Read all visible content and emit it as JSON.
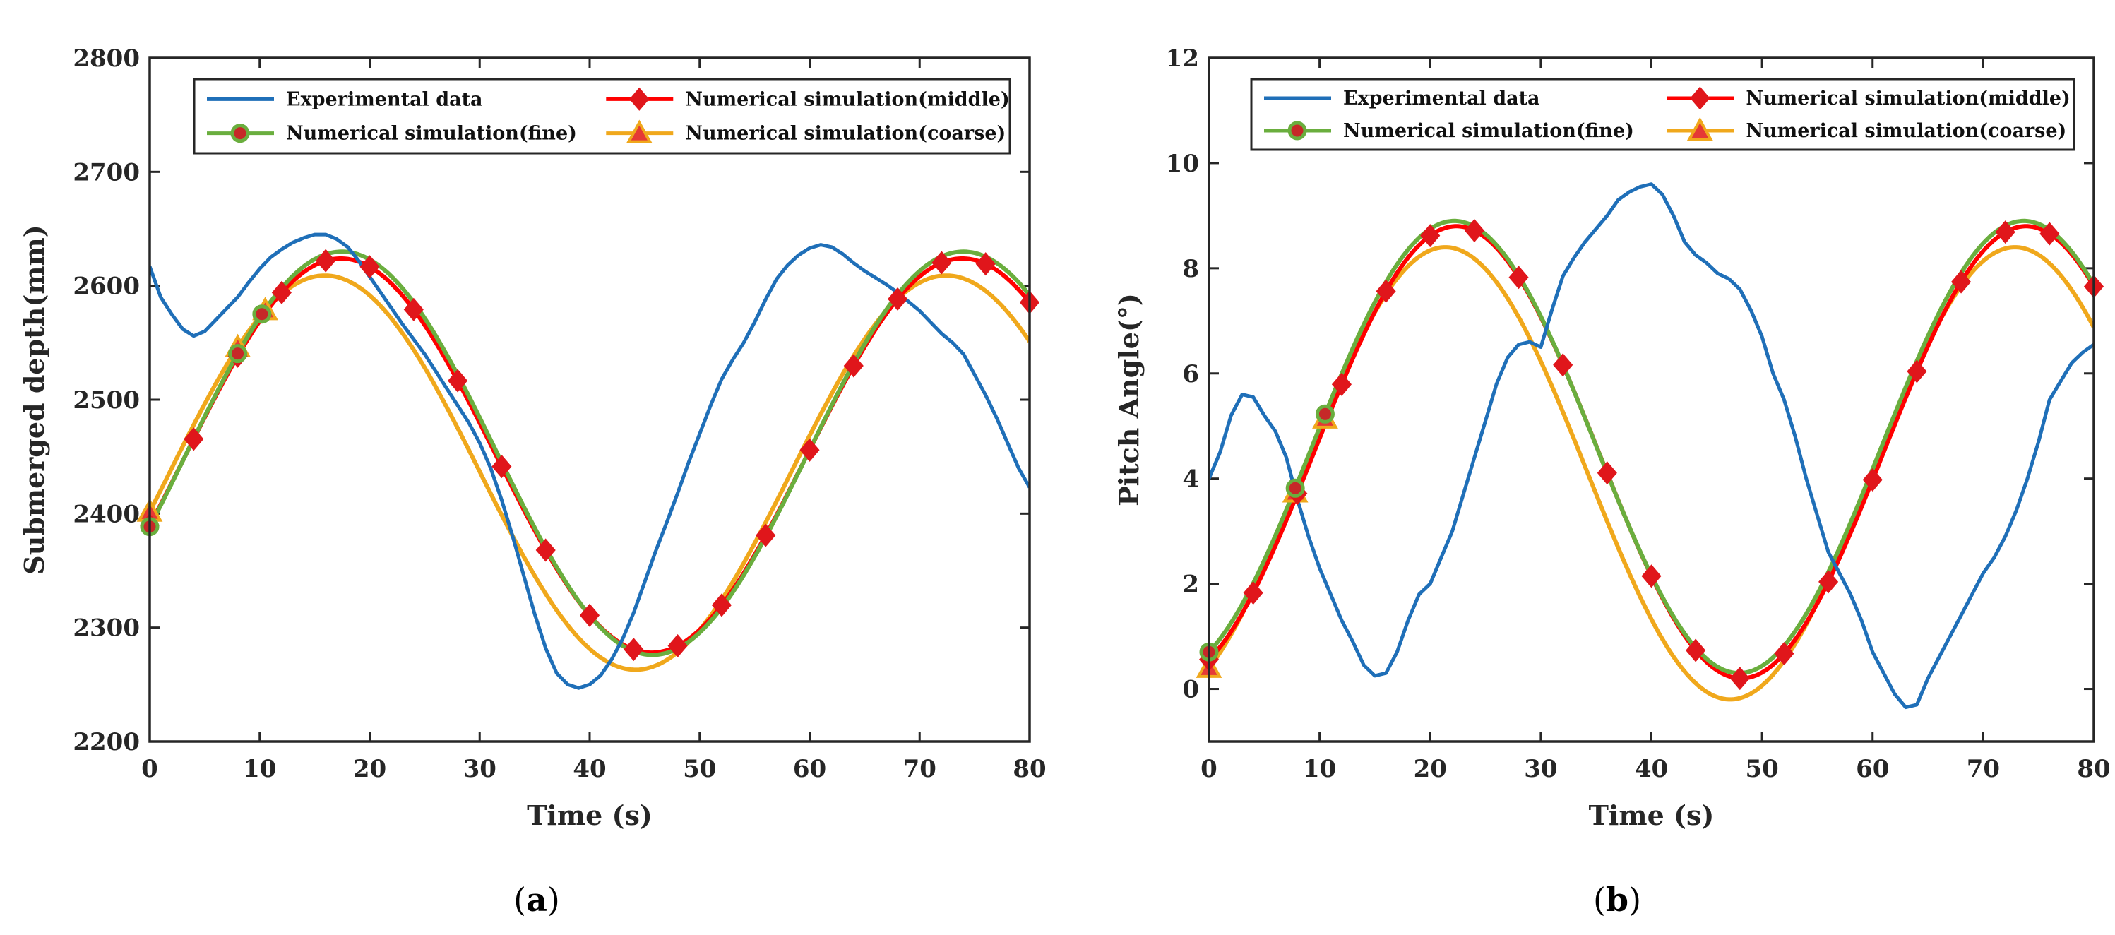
{
  "colors": {
    "experimental": "#1F6FB8",
    "middle": "#FF0000",
    "middle_marker": "#E0161B",
    "fine": "#6AAE3E",
    "fine_marker_face": "#C62828",
    "coarse": "#F0A81C",
    "coarse_marker_face": "#E53935"
  },
  "chart_data": [
    {
      "type": "line",
      "panel_label_prefix": "(",
      "panel_label_letter": "a",
      "panel_label_suffix": ")",
      "xlabel": "Time (s)",
      "ylabel": "Submerged depth(mm)",
      "xlim": [
        0,
        80
      ],
      "ylim": [
        2200,
        2800
      ],
      "xticks": [
        0,
        10,
        20,
        30,
        40,
        50,
        60,
        70,
        80
      ],
      "yticks": [
        2200,
        2300,
        2400,
        2500,
        2600,
        2700,
        2800
      ],
      "grid": false,
      "legend_position": "top",
      "series": [
        {
          "name": "Experimental data",
          "key": "experimental",
          "marker": "none",
          "x": [
            0,
            1,
            2,
            3,
            4,
            5,
            6,
            7,
            8,
            9,
            10,
            11,
            12,
            13,
            14,
            15,
            16,
            17,
            18,
            19,
            20,
            21,
            22,
            23,
            24,
            25,
            26,
            27,
            28,
            29,
            30,
            31,
            32,
            33,
            34,
            35,
            36,
            37,
            38,
            39,
            40,
            41,
            42,
            43,
            44,
            45,
            46,
            47,
            48,
            49,
            50,
            51,
            52,
            53,
            54,
            55,
            56,
            57,
            58,
            59,
            60,
            61,
            62,
            63,
            64,
            65,
            66,
            67,
            68,
            69,
            70,
            71,
            72,
            73,
            74,
            75,
            76,
            77,
            78,
            79,
            80
          ],
          "y": [
            2617,
            2590,
            2575,
            2562,
            2556,
            2560,
            2570,
            2580,
            2590,
            2603,
            2615,
            2625,
            2632,
            2638,
            2642,
            2645,
            2645,
            2641,
            2634,
            2622,
            2608,
            2594,
            2580,
            2566,
            2553,
            2540,
            2525,
            2510,
            2495,
            2480,
            2462,
            2440,
            2412,
            2380,
            2346,
            2312,
            2282,
            2260,
            2250,
            2247,
            2250,
            2258,
            2272,
            2290,
            2313,
            2340,
            2367,
            2392,
            2418,
            2445,
            2470,
            2495,
            2518,
            2535,
            2550,
            2568,
            2588,
            2606,
            2618,
            2627,
            2633,
            2636,
            2634,
            2628,
            2620,
            2613,
            2607,
            2601,
            2594,
            2586,
            2578,
            2568,
            2558,
            2550,
            2540,
            2522,
            2504,
            2484,
            2462,
            2440,
            2423
          ]
        },
        {
          "name": "Numerical simulation(middle)",
          "key": "middle",
          "marker": "diamond",
          "phase": 3.25,
          "mean": 2451,
          "amplitude": 173,
          "period": 56.5,
          "marker_x": [
            0,
            4,
            8,
            12,
            16,
            20,
            24,
            28,
            32,
            36,
            40,
            44,
            48,
            52,
            56,
            60,
            64,
            68,
            72,
            76,
            80
          ]
        },
        {
          "name": "Numerical simulation(fine)",
          "key": "fine",
          "marker": "circle",
          "phase": 3.35,
          "mean": 2453,
          "amplitude": 177,
          "period": 56.5,
          "marker_x": [
            0,
            8,
            10.2
          ]
        },
        {
          "name": "Numerical simulation(coarse)",
          "key": "coarse",
          "marker": "triangle",
          "phase": 1.8,
          "mean": 2436,
          "amplitude": 173,
          "period": 56.5,
          "marker_x": [
            0,
            8,
            10.5
          ]
        }
      ]
    },
    {
      "type": "line",
      "panel_label_prefix": "(",
      "panel_label_letter": "b",
      "panel_label_suffix": ")",
      "xlabel": "Time (s)",
      "ylabel": "Pitch Angle(°)",
      "xlim": [
        0,
        80
      ],
      "ylim": [
        -1,
        12
      ],
      "xticks": [
        0,
        10,
        20,
        30,
        40,
        50,
        60,
        70,
        80
      ],
      "yticks": [
        0,
        2,
        4,
        6,
        8,
        10,
        12
      ],
      "grid": false,
      "legend_position": "top",
      "series": [
        {
          "name": "Experimental data",
          "key": "experimental",
          "marker": "none",
          "x": [
            0,
            1,
            2,
            3,
            4,
            5,
            6,
            7,
            8,
            9,
            10,
            11,
            12,
            13,
            14,
            15,
            16,
            17,
            18,
            19,
            20,
            21,
            22,
            23,
            24,
            25,
            26,
            27,
            28,
            29,
            30,
            31,
            32,
            33,
            34,
            35,
            36,
            37,
            38,
            39,
            40,
            41,
            42,
            43,
            44,
            45,
            46,
            47,
            48,
            49,
            50,
            51,
            52,
            53,
            54,
            55,
            56,
            57,
            58,
            59,
            60,
            61,
            62,
            63,
            64,
            65,
            66,
            67,
            68,
            69,
            70,
            71,
            72,
            73,
            74,
            75,
            76,
            77,
            78,
            79,
            80
          ],
          "y": [
            4.0,
            4.5,
            5.2,
            5.6,
            5.55,
            5.2,
            4.9,
            4.4,
            3.6,
            2.9,
            2.3,
            1.8,
            1.3,
            0.9,
            0.45,
            0.25,
            0.3,
            0.7,
            1.3,
            1.8,
            2.0,
            2.5,
            3.0,
            3.7,
            4.4,
            5.1,
            5.8,
            6.3,
            6.55,
            6.6,
            6.5,
            7.2,
            7.85,
            8.2,
            8.5,
            8.75,
            9.0,
            9.3,
            9.45,
            9.55,
            9.6,
            9.4,
            9.0,
            8.5,
            8.25,
            8.1,
            7.9,
            7.8,
            7.6,
            7.2,
            6.7,
            6.0,
            5.5,
            4.8,
            4.0,
            3.3,
            2.6,
            2.2,
            1.8,
            1.3,
            0.7,
            0.3,
            -0.1,
            -0.35,
            -0.3,
            0.2,
            0.6,
            1.0,
            1.4,
            1.8,
            2.2,
            2.5,
            2.9,
            3.4,
            4.0,
            4.7,
            5.5,
            5.85,
            6.2,
            6.4,
            6.55
          ]
        },
        {
          "name": "Numerical simulation(middle)",
          "key": "middle",
          "marker": "diamond",
          "phase": 9.5,
          "mean": 4.5,
          "amplitude": 4.3,
          "period": 51.5,
          "marker_x": [
            0,
            4,
            8,
            12,
            16,
            20,
            24,
            28,
            32,
            36,
            40,
            44,
            48,
            52,
            56,
            60,
            64,
            68,
            72,
            76,
            80
          ]
        },
        {
          "name": "Numerical simulation(fine)",
          "key": "fine",
          "marker": "circle",
          "phase": 9.3,
          "mean": 4.6,
          "amplitude": 4.3,
          "period": 51.5,
          "marker_x": [
            0,
            7.8,
            10.5
          ]
        },
        {
          "name": "Numerical simulation(coarse)",
          "key": "coarse",
          "marker": "triangle",
          "phase": 8.5,
          "mean": 4.1,
          "amplitude": 4.3,
          "period": 51.5,
          "marker_x": [
            0,
            7.8,
            10.5
          ]
        }
      ]
    }
  ]
}
